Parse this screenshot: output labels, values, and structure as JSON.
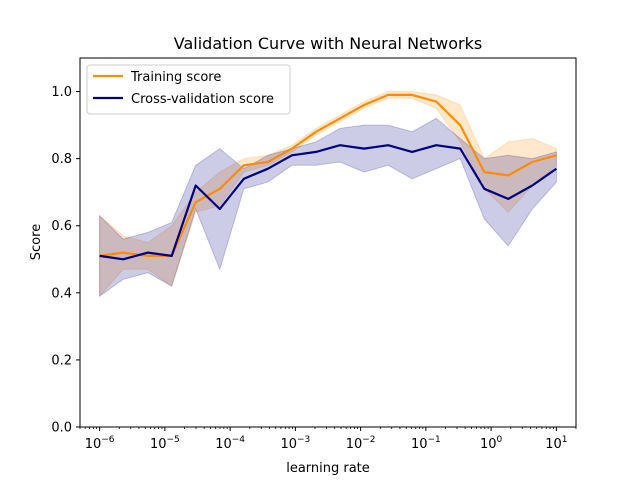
{
  "chart_data": {
    "type": "line",
    "title": "Validation Curve with Neural Networks",
    "xlabel": "learning rate",
    "ylabel": "Score",
    "xscale": "log",
    "xlim": [
      5e-07,
      20
    ],
    "ylim": [
      0.0,
      1.1
    ],
    "x_ticks": [
      {
        "value": 1e-06,
        "base": "10",
        "exp": "−6"
      },
      {
        "value": 1e-05,
        "base": "10",
        "exp": "−5"
      },
      {
        "value": 0.0001,
        "base": "10",
        "exp": "−4"
      },
      {
        "value": 0.001,
        "base": "10",
        "exp": "−3"
      },
      {
        "value": 0.01,
        "base": "10",
        "exp": "−2"
      },
      {
        "value": 0.1,
        "base": "10",
        "exp": "−1"
      },
      {
        "value": 1,
        "base": "10",
        "exp": "0"
      },
      {
        "value": 10,
        "base": "10",
        "exp": "1"
      }
    ],
    "y_ticks": [
      {
        "value": 0.0,
        "label": "0.0"
      },
      {
        "value": 0.2,
        "label": "0.2"
      },
      {
        "value": 0.4,
        "label": "0.4"
      },
      {
        "value": 0.6,
        "label": "0.6"
      },
      {
        "value": 0.8,
        "label": "0.8"
      },
      {
        "value": 1.0,
        "label": "1.0"
      }
    ],
    "grid": false,
    "legend_position": "top-left",
    "x": [
      1e-06,
      2.3e-06,
      5.5e-06,
      1.27e-05,
      2.97e-05,
      6.95e-05,
      0.000162,
      0.000379,
      0.000886,
      0.00207,
      0.00483,
      0.0113,
      0.0264,
      0.0616,
      0.144,
      0.336,
      0.785,
      1.83,
      4.28,
      10
    ],
    "series": [
      {
        "name": "Training score",
        "color": "#ff8c00",
        "values": [
          0.51,
          0.52,
          0.51,
          0.51,
          0.67,
          0.71,
          0.78,
          0.79,
          0.83,
          0.88,
          0.92,
          0.96,
          0.99,
          0.99,
          0.97,
          0.9,
          0.76,
          0.75,
          0.79,
          0.81
        ],
        "lower": [
          0.39,
          0.47,
          0.47,
          0.42,
          0.64,
          0.66,
          0.76,
          0.78,
          0.82,
          0.87,
          0.91,
          0.95,
          0.98,
          0.98,
          0.95,
          0.85,
          0.71,
          0.64,
          0.72,
          0.78
        ],
        "upper": [
          0.63,
          0.57,
          0.55,
          0.6,
          0.7,
          0.76,
          0.8,
          0.81,
          0.84,
          0.89,
          0.93,
          0.97,
          1.0,
          1.0,
          0.99,
          0.96,
          0.8,
          0.85,
          0.86,
          0.83
        ]
      },
      {
        "name": "Cross-validation score",
        "color": "#000080",
        "values": [
          0.51,
          0.5,
          0.52,
          0.51,
          0.72,
          0.65,
          0.74,
          0.77,
          0.81,
          0.82,
          0.84,
          0.83,
          0.84,
          0.82,
          0.84,
          0.83,
          0.71,
          0.68,
          0.72,
          0.77
        ],
        "lower": [
          0.39,
          0.44,
          0.46,
          0.42,
          0.65,
          0.47,
          0.71,
          0.73,
          0.78,
          0.78,
          0.79,
          0.76,
          0.78,
          0.74,
          0.77,
          0.8,
          0.62,
          0.54,
          0.65,
          0.73
        ],
        "upper": [
          0.63,
          0.56,
          0.58,
          0.61,
          0.78,
          0.83,
          0.77,
          0.81,
          0.83,
          0.85,
          0.89,
          0.9,
          0.9,
          0.88,
          0.92,
          0.86,
          0.8,
          0.81,
          0.8,
          0.82
        ]
      }
    ]
  }
}
